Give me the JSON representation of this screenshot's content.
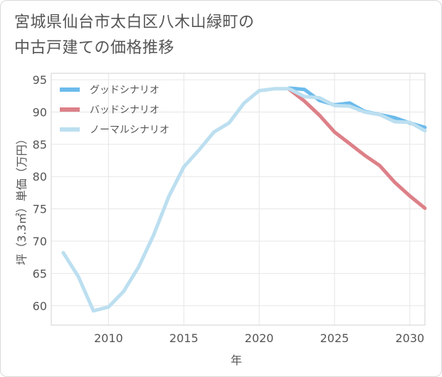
{
  "chart_data": {
    "type": "line",
    "title_lines": [
      "宮城県仙台市太白区八木山緑町の",
      "中古戸建ての価格推移"
    ],
    "xlabel": "年",
    "ylabel": "坪（3.3㎡）単価（万円）",
    "xlim": [
      2006.2,
      2031
    ],
    "ylim": [
      57,
      96
    ],
    "x_ticks": [
      2010,
      2015,
      2020,
      2025,
      2030
    ],
    "y_ticks": [
      60,
      65,
      70,
      75,
      80,
      85,
      90,
      95
    ],
    "grid": true,
    "legend_position": "top-left",
    "series": [
      {
        "name": "グッドシナリオ",
        "color": "#6cbbec",
        "x": [
          2022,
          2023,
          2024,
          2025,
          2026,
          2027,
          2028,
          2029,
          2030,
          2031
        ],
        "values": [
          93.7,
          93.5,
          91.8,
          91.1,
          91.4,
          90.1,
          89.6,
          89.1,
          88.3,
          87.6
        ]
      },
      {
        "name": "バッドシナリオ",
        "color": "#dd8088",
        "x": [
          2022,
          2023,
          2024,
          2025,
          2026,
          2027,
          2028,
          2029,
          2030,
          2031
        ],
        "values": [
          93.5,
          91.7,
          89.5,
          86.9,
          85.1,
          83.3,
          81.7,
          79.1,
          77.0,
          75.1
        ]
      },
      {
        "name": "ノーマルシナリオ",
        "color": "#bcdff0",
        "x": [
          2007,
          2008,
          2009,
          2010,
          2011,
          2012,
          2013,
          2014,
          2015,
          2016,
          2017,
          2018,
          2019,
          2020,
          2021,
          2022,
          2023,
          2024,
          2025,
          2026,
          2027,
          2028,
          2029,
          2030,
          2031
        ],
        "values": [
          68.2,
          64.5,
          59.2,
          59.8,
          62.2,
          66.0,
          71.0,
          76.9,
          81.5,
          84.1,
          86.9,
          88.3,
          91.4,
          93.3,
          93.6,
          93.6,
          92.4,
          92.2,
          91.0,
          90.9,
          90.0,
          89.6,
          88.5,
          88.4,
          87.1
        ]
      }
    ]
  }
}
